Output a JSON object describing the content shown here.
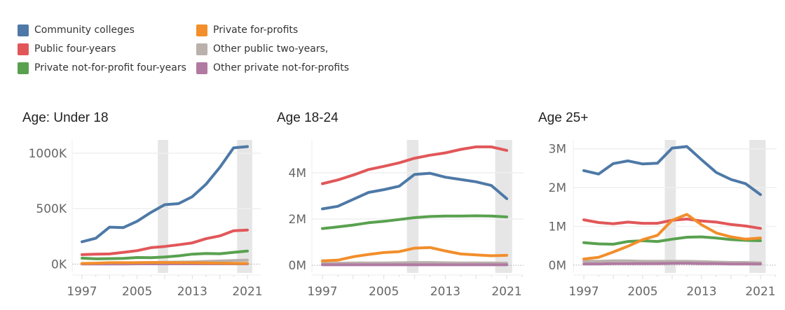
{
  "legend": [
    {
      "label": "Community colleges",
      "color": "#4e79a7"
    },
    {
      "label": "Private for-profits",
      "color": "#f28e2b"
    },
    {
      "label": "Public four-years",
      "color": "#e15759"
    },
    {
      "label": "Other public two-years,",
      "color": "#bab0ac"
    },
    {
      "label": "Private not-for-profit four-years",
      "color": "#59a14f"
    },
    {
      "label": "Other private not-for-profits",
      "color": "#b07aa1"
    }
  ],
  "chart_data": [
    {
      "type": "line",
      "title": "Age: Under 18",
      "x": [
        1997,
        1999,
        2001,
        2003,
        2005,
        2007,
        2009,
        2011,
        2013,
        2015,
        2017,
        2019,
        2021
      ],
      "xticks": [
        "1997",
        "2005",
        "2013",
        "2021"
      ],
      "yticks": [
        {
          "v": 0,
          "label": "0K"
        },
        {
          "v": 500,
          "label": "500K"
        },
        {
          "v": 1000,
          "label": "1000K"
        }
      ],
      "ylim": [
        -80,
        1120
      ],
      "shaded_ranges": [
        [
          2008,
          2009.5
        ],
        [
          2019.5,
          2021.7
        ]
      ],
      "grid": true,
      "series": [
        {
          "name": "Community colleges",
          "color": "#4e79a7",
          "values": [
            201,
            233,
            333,
            329,
            386,
            466,
            536,
            545,
            608,
            721,
            873,
            1049,
            1060
          ]
        },
        {
          "name": "Public four-years",
          "color": "#e15759",
          "values": [
            85,
            89,
            91,
            106,
            121,
            148,
            159,
            174,
            191,
            229,
            254,
            301,
            307
          ]
        },
        {
          "name": "Private not-for-profit four-years",
          "color": "#59a14f",
          "values": [
            53,
            47,
            49,
            51,
            59,
            57,
            64,
            74,
            89,
            95,
            93,
            106,
            117
          ]
        },
        {
          "name": "Other public two-years,",
          "color": "#bab0ac",
          "values": [
            5,
            5,
            8,
            10,
            12,
            14,
            16,
            18,
            20,
            24,
            28,
            32,
            35
          ]
        },
        {
          "name": "Other private not-for-profits",
          "color": "#b07aa1",
          "values": [
            1,
            1,
            1,
            1,
            2,
            2,
            2,
            2,
            2,
            2,
            2,
            2,
            2
          ]
        },
        {
          "name": "Private for-profits",
          "color": "#f28e2b",
          "values": [
            5,
            8,
            12,
            12,
            12,
            14,
            14,
            12,
            12,
            10,
            8,
            6,
            5
          ]
        }
      ]
    },
    {
      "type": "line",
      "title": "Age 18-24",
      "x": [
        1997,
        1999,
        2001,
        2003,
        2005,
        2007,
        2009,
        2011,
        2013,
        2015,
        2017,
        2019,
        2021
      ],
      "xticks": [
        "1997",
        "2005",
        "2013",
        "2021"
      ],
      "yticks": [
        {
          "v": 0,
          "label": "0M"
        },
        {
          "v": 2,
          "label": "2M"
        },
        {
          "v": 4,
          "label": "4M"
        }
      ],
      "ylim": [
        -0.33,
        5.42
      ],
      "shaded_ranges": [
        [
          2008,
          2009.5
        ],
        [
          2019.5,
          2021.7
        ]
      ],
      "grid": true,
      "series": [
        {
          "name": "Public four-years",
          "color": "#e15759",
          "values": [
            3.53,
            3.69,
            3.9,
            4.14,
            4.28,
            4.43,
            4.63,
            4.76,
            4.86,
            5.01,
            5.12,
            5.12,
            4.97
          ]
        },
        {
          "name": "Community colleges",
          "color": "#4e79a7",
          "values": [
            2.44,
            2.55,
            2.85,
            3.15,
            3.27,
            3.42,
            3.93,
            3.98,
            3.81,
            3.71,
            3.61,
            3.45,
            2.88
          ]
        },
        {
          "name": "Private not-for-profit four-years",
          "color": "#59a14f",
          "values": [
            1.59,
            1.66,
            1.74,
            1.84,
            1.9,
            1.98,
            2.06,
            2.11,
            2.13,
            2.13,
            2.14,
            2.13,
            2.09
          ]
        },
        {
          "name": "Other public two-years,",
          "color": "#bab0ac",
          "values": [
            0.08,
            0.09,
            0.1,
            0.1,
            0.1,
            0.11,
            0.12,
            0.12,
            0.11,
            0.1,
            0.1,
            0.1,
            0.09
          ]
        },
        {
          "name": "Other private not-for-profits",
          "color": "#b07aa1",
          "values": [
            0.02,
            0.02,
            0.02,
            0.02,
            0.02,
            0.02,
            0.02,
            0.02,
            0.02,
            0.02,
            0.02,
            0.02,
            0.02
          ]
        },
        {
          "name": "Private for-profits",
          "color": "#f28e2b",
          "values": [
            0.19,
            0.22,
            0.37,
            0.47,
            0.55,
            0.59,
            0.74,
            0.77,
            0.62,
            0.49,
            0.45,
            0.41,
            0.43
          ]
        }
      ]
    },
    {
      "type": "line",
      "title": "Age 25+",
      "x": [
        1997,
        1999,
        2001,
        2003,
        2005,
        2007,
        2009,
        2011,
        2013,
        2015,
        2017,
        2019,
        2021
      ],
      "xticks": [
        "1997",
        "2005",
        "2013",
        "2021"
      ],
      "yticks": [
        {
          "v": 0,
          "label": "0M"
        },
        {
          "v": 1,
          "label": "1M"
        },
        {
          "v": 2,
          "label": "2M"
        },
        {
          "v": 3,
          "label": "3M"
        }
      ],
      "ylim": [
        -0.2,
        3.23
      ],
      "shaded_ranges": [
        [
          2008,
          2009.5
        ],
        [
          2019.5,
          2021.7
        ]
      ],
      "grid": true,
      "series": [
        {
          "name": "Community colleges",
          "color": "#4e79a7",
          "values": [
            2.44,
            2.35,
            2.62,
            2.69,
            2.61,
            2.63,
            3.02,
            3.06,
            2.72,
            2.39,
            2.21,
            2.1,
            1.82
          ]
        },
        {
          "name": "Public four-years",
          "color": "#e15759",
          "values": [
            1.17,
            1.1,
            1.07,
            1.11,
            1.08,
            1.08,
            1.16,
            1.19,
            1.14,
            1.11,
            1.05,
            1.01,
            0.95
          ]
        },
        {
          "name": "Private not-for-profit four-years",
          "color": "#59a14f",
          "values": [
            0.58,
            0.55,
            0.54,
            0.61,
            0.63,
            0.61,
            0.67,
            0.72,
            0.73,
            0.7,
            0.66,
            0.64,
            0.63
          ]
        },
        {
          "name": "Other public two-years,",
          "color": "#bab0ac",
          "values": [
            0.1,
            0.1,
            0.11,
            0.11,
            0.1,
            0.1,
            0.1,
            0.1,
            0.09,
            0.08,
            0.07,
            0.07,
            0.06
          ]
        },
        {
          "name": "Other private not-for-profits",
          "color": "#b07aa1",
          "values": [
            0.03,
            0.03,
            0.04,
            0.04,
            0.04,
            0.04,
            0.05,
            0.05,
            0.04,
            0.04,
            0.03,
            0.03,
            0.03
          ]
        },
        {
          "name": "Private for-profits",
          "color": "#f28e2b",
          "values": [
            0.16,
            0.2,
            0.34,
            0.49,
            0.66,
            0.77,
            1.16,
            1.31,
            1.04,
            0.83,
            0.73,
            0.67,
            0.7
          ]
        }
      ]
    }
  ]
}
